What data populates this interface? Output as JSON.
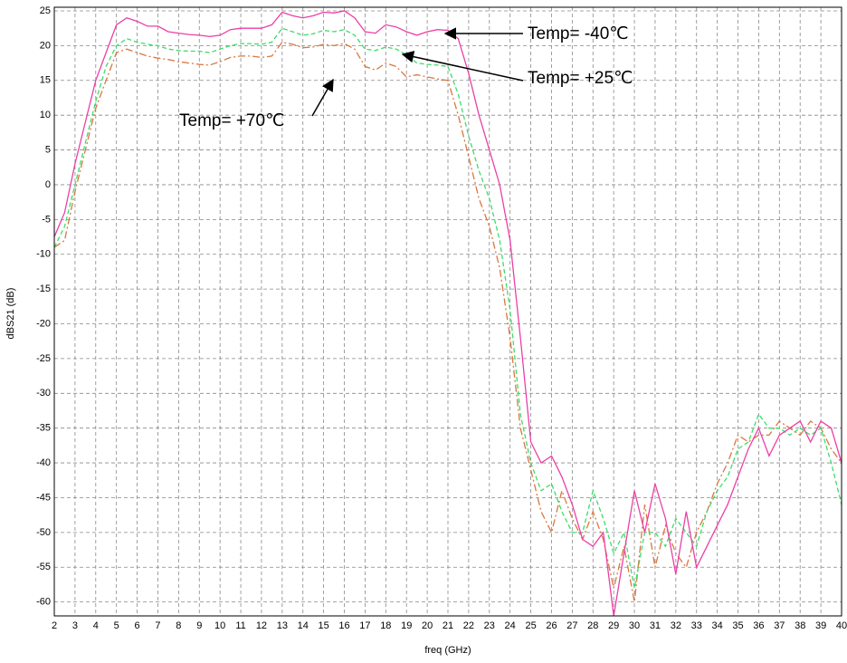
{
  "chart_data": {
    "type": "line",
    "xlabel": "freq (GHz)",
    "ylabel": "dBS21 (dB)",
    "x": [
      2,
      2.5,
      3,
      3.5,
      4,
      4.5,
      5,
      5.5,
      6,
      6.5,
      7,
      7.5,
      8,
      8.5,
      9,
      9.5,
      10,
      10.5,
      11,
      11.5,
      12,
      12.5,
      13,
      13.5,
      14,
      14.5,
      15,
      15.5,
      16,
      16.5,
      17,
      17.5,
      18,
      18.5,
      19,
      19.5,
      20,
      20.5,
      21,
      21.5,
      22,
      22.5,
      23,
      23.5,
      24,
      24.5,
      25,
      25.5,
      26,
      26.5,
      27,
      27.5,
      28,
      28.5,
      29,
      29.5,
      30,
      30.5,
      31,
      31.5,
      32,
      32.5,
      33,
      33.5,
      34,
      34.5,
      35,
      35.5,
      36,
      36.5,
      37,
      37.5,
      38,
      38.5,
      39,
      39.5,
      40
    ],
    "series": [
      {
        "color": "#ec3fa6",
        "linestyle": "solid",
        "values": [
          -7.5,
          -4,
          3,
          9,
          15,
          19,
          23,
          24,
          23.5,
          22.8,
          22.8,
          22,
          21.8,
          21.6,
          21.5,
          21.3,
          21.5,
          22.3,
          22.5,
          22.5,
          22.5,
          23,
          24.8,
          24.3,
          24,
          24.3,
          24.8,
          24.7,
          25,
          24,
          22,
          21.8,
          23,
          22.7,
          22,
          21.5,
          22,
          22.3,
          22.2,
          21,
          16,
          10,
          5,
          0,
          -8,
          -22,
          -37,
          -40,
          -39,
          -42,
          -46,
          -51,
          -52,
          -50,
          -62,
          -53,
          -44,
          -50,
          -43,
          -48,
          -56,
          -47,
          -55,
          -52,
          -49,
          -46,
          -42,
          -38,
          -35,
          -39,
          -36,
          -35,
          -34,
          -37,
          -34,
          -35,
          -40
        ]
      },
      {
        "color": "#3ddc6a",
        "linestyle": "dashed",
        "values": [
          -9,
          -6,
          0,
          6,
          12,
          17,
          20,
          21,
          20.5,
          20.2,
          20,
          19.5,
          19.3,
          19.2,
          19.2,
          19,
          19.5,
          20,
          20.3,
          20.3,
          20.2,
          20.5,
          22.5,
          22,
          21.5,
          21.7,
          22.2,
          22,
          22.3,
          21.5,
          19.5,
          19.3,
          19.8,
          19.5,
          18.7,
          17.5,
          17.3,
          17.2,
          17,
          13,
          7,
          2,
          -2,
          -8,
          -18,
          -33,
          -40,
          -44,
          -43,
          -47,
          -50,
          -50,
          -44,
          -48,
          -53,
          -50,
          -58,
          -50,
          -50,
          -52,
          -48,
          -50,
          -52,
          -47,
          -44,
          -42,
          -38,
          -37,
          -33,
          -35,
          -35,
          -36,
          -35,
          -36,
          -35,
          -40,
          -46
        ]
      },
      {
        "color": "#d9773f",
        "linestyle": "dashdot",
        "values": [
          -9,
          -8,
          -1,
          5,
          11,
          15,
          19,
          19.5,
          19,
          18.5,
          18.2,
          18,
          17.7,
          17.5,
          17.3,
          17.2,
          17.7,
          18.3,
          18.5,
          18.5,
          18.3,
          18.5,
          20.5,
          20.2,
          19.7,
          19.8,
          20.2,
          20,
          20.3,
          19.5,
          17,
          16.5,
          17.5,
          17,
          15.5,
          15.8,
          15.5,
          15.2,
          15,
          10,
          4,
          -2,
          -6,
          -12,
          -22,
          -35,
          -41,
          -47,
          -50,
          -44,
          -48,
          -51,
          -47,
          -51,
          -58,
          -52,
          -60,
          -46,
          -55,
          -49,
          -53,
          -55,
          -50,
          -47,
          -43,
          -40,
          -36,
          -37,
          -36,
          -36,
          -34,
          -35,
          -36,
          -34,
          -35,
          -38,
          -40
        ]
      }
    ],
    "xlim": [
      2,
      40
    ],
    "xticks": [
      2,
      3,
      4,
      5,
      6,
      7,
      8,
      9,
      10,
      11,
      12,
      13,
      14,
      15,
      16,
      17,
      18,
      19,
      20,
      21,
      22,
      23,
      24,
      25,
      26,
      27,
      28,
      29,
      30,
      31,
      32,
      33,
      34,
      35,
      36,
      37,
      38,
      39,
      40
    ],
    "ylim": [
      -62,
      25
    ],
    "yticks": [
      25,
      20,
      15,
      10,
      5,
      0,
      -5,
      -10,
      -15,
      -20,
      -25,
      -30,
      -35,
      -40,
      -45,
      -50,
      -55,
      -60
    ],
    "grid": true,
    "annotations": [
      {
        "text": "Temp= -40℃"
      },
      {
        "text": "Temp= +25℃"
      },
      {
        "text": "Temp= +70℃"
      }
    ]
  }
}
